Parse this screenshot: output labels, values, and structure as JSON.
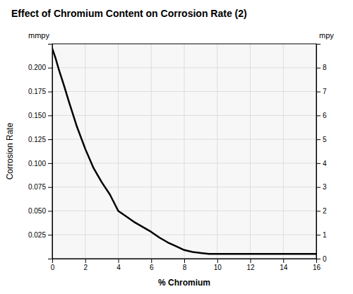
{
  "chart_data": {
    "type": "line",
    "title": "Effect of Chromium Content on Corrosion Rate (2)",
    "xlabel": "% Chromium",
    "ylabel": "Corrosion Rate",
    "y_unit": "mmpy",
    "y2_unit": "mpy",
    "x": [
      0,
      0.2,
      0.4,
      0.7,
      1.0,
      1.5,
      2.0,
      2.5,
      3.0,
      3.5,
      4.0,
      4.5,
      5.0,
      5.5,
      6.0,
      6.5,
      7.0,
      7.5,
      8.0,
      8.5,
      9.0,
      9.5,
      10.0,
      11.0,
      12.0,
      13.0,
      14.0,
      15.0,
      16.0
    ],
    "series": [
      {
        "color": "#000000",
        "values": [
          0.22,
          0.21,
          0.198,
          0.182,
          0.165,
          0.138,
          0.115,
          0.095,
          0.08,
          0.067,
          0.05,
          0.044,
          0.038,
          0.033,
          0.028,
          0.022,
          0.017,
          0.013,
          0.009,
          0.007,
          0.006,
          0.005,
          0.005,
          0.005,
          0.005,
          0.005,
          0.005,
          0.005,
          0.005
        ]
      }
    ],
    "xlim": [
      0,
      16
    ],
    "xticks": [
      0,
      2,
      4,
      6,
      8,
      10,
      12,
      14,
      16
    ],
    "ylim": [
      0,
      0.225
    ],
    "yticks": [
      0.025,
      {
        "value": 0.05,
        "label": "0.050"
      },
      0.075,
      {
        "value": 0.1,
        "label": "0.100"
      },
      0.125,
      {
        "value": 0.15,
        "label": "0.150"
      },
      0.175,
      {
        "value": 0.2,
        "label": "0.200"
      }
    ],
    "y2lim": [
      0,
      9.0
    ],
    "y2ticks": [
      0,
      1,
      2,
      3,
      4,
      5,
      6,
      7,
      8
    ],
    "grid": true
  }
}
